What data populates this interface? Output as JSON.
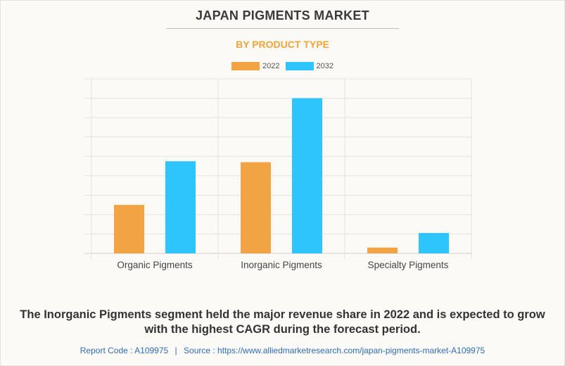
{
  "title": "JAPAN PIGMENTS MARKET",
  "subtitle": "BY PRODUCT TYPE",
  "colors": {
    "series_2022": "#f2a444",
    "series_2032": "#2ec5fd",
    "subtitle": "#f2a33a",
    "grid": "#e2e2e2"
  },
  "footnote": "The Inorganic Pigments segment held the major revenue share in 2022 and is expected to grow with the highest CAGR during the forecast period.",
  "source": {
    "report_code": "Report Code : A109975",
    "separator": "|",
    "source_text": "Source : https://www.alliedmarketresearch.com/japan-pigments-market-A109975"
  },
  "chart_data": {
    "type": "bar",
    "title": "JAPAN PIGMENTS MARKET",
    "subtitle": "BY PRODUCT TYPE",
    "categories": [
      "Organic Pigments",
      "Inorganic Pigments",
      "Specialty Pigments"
    ],
    "series": [
      {
        "name": "2022",
        "values": [
          2.5,
          4.7,
          0.3
        ]
      },
      {
        "name": "2032",
        "values": [
          4.75,
          8.0,
          1.05
        ]
      }
    ],
    "ylim": [
      0,
      9
    ],
    "grid": true,
    "y_tick_labels_shown": false,
    "legend_position": "top-center"
  }
}
